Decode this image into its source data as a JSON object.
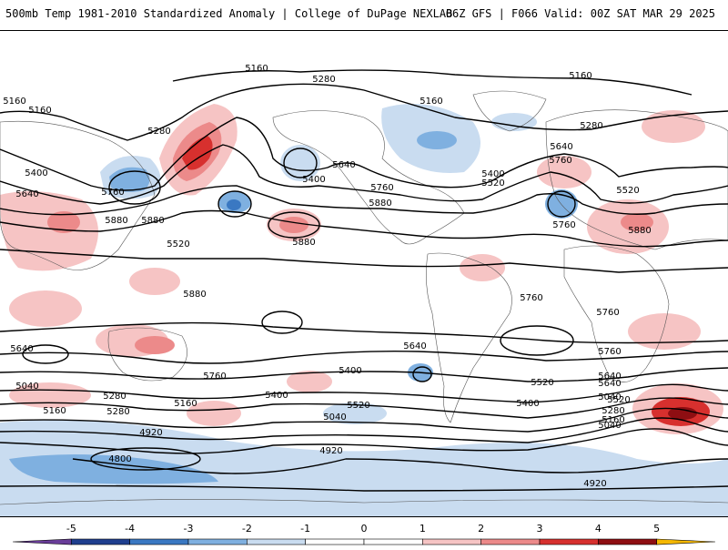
{
  "header": {
    "title_left": "500mb Temp 1981-2010 Standardized Anomaly | College of DuPage NEXLAB",
    "title_right": "06Z GFS | F066 Valid: 00Z SAT MAR 29 2025"
  },
  "colorbar": {
    "ticks": [
      "-5",
      "-4",
      "-3",
      "-2",
      "-1",
      "0",
      "1",
      "2",
      "3",
      "4",
      "5"
    ],
    "colors": [
      "#6a3d9a",
      "#1f3f8f",
      "#3a78c2",
      "#7fb0e0",
      "#c9dcf0",
      "#ffffff",
      "#ffffff",
      "#f6c4c4",
      "#ec8a8a",
      "#d7302e",
      "#8e0e12",
      "#f5b800"
    ]
  },
  "map": {
    "contour_labels": [
      {
        "text": "5160"
      },
      {
        "text": "5280"
      },
      {
        "text": "5160"
      },
      {
        "text": "5160"
      },
      {
        "text": "5280"
      },
      {
        "text": "5160"
      },
      {
        "text": "5160"
      },
      {
        "text": "5400"
      },
      {
        "text": "5640"
      },
      {
        "text": "5760"
      },
      {
        "text": "5880"
      },
      {
        "text": "5520"
      },
      {
        "text": "5400"
      },
      {
        "text": "5640"
      },
      {
        "text": "5760"
      },
      {
        "text": "5880"
      },
      {
        "text": "5280"
      },
      {
        "text": "5400"
      },
      {
        "text": "5520"
      },
      {
        "text": "5640"
      },
      {
        "text": "5760"
      },
      {
        "text": "5520"
      },
      {
        "text": "5880"
      },
      {
        "text": "5760"
      },
      {
        "text": "5880"
      },
      {
        "text": "5880"
      },
      {
        "text": "5880"
      },
      {
        "text": "5760"
      },
      {
        "text": "5760"
      },
      {
        "text": "5640"
      },
      {
        "text": "5760"
      },
      {
        "text": "5640"
      },
      {
        "text": "5400"
      },
      {
        "text": "5520"
      },
      {
        "text": "5040"
      },
      {
        "text": "5280"
      },
      {
        "text": "5160"
      },
      {
        "text": "5400"
      },
      {
        "text": "5520"
      },
      {
        "text": "5280"
      },
      {
        "text": "5160"
      },
      {
        "text": "5040"
      },
      {
        "text": "4920"
      },
      {
        "text": "4800"
      },
      {
        "text": "4920"
      },
      {
        "text": "5640"
      },
      {
        "text": "5400"
      },
      {
        "text": "5040"
      },
      {
        "text": "5760"
      },
      {
        "text": "5640"
      },
      {
        "text": "5520"
      },
      {
        "text": "5280"
      },
      {
        "text": "5160"
      },
      {
        "text": "5040"
      },
      {
        "text": "4920"
      }
    ]
  }
}
